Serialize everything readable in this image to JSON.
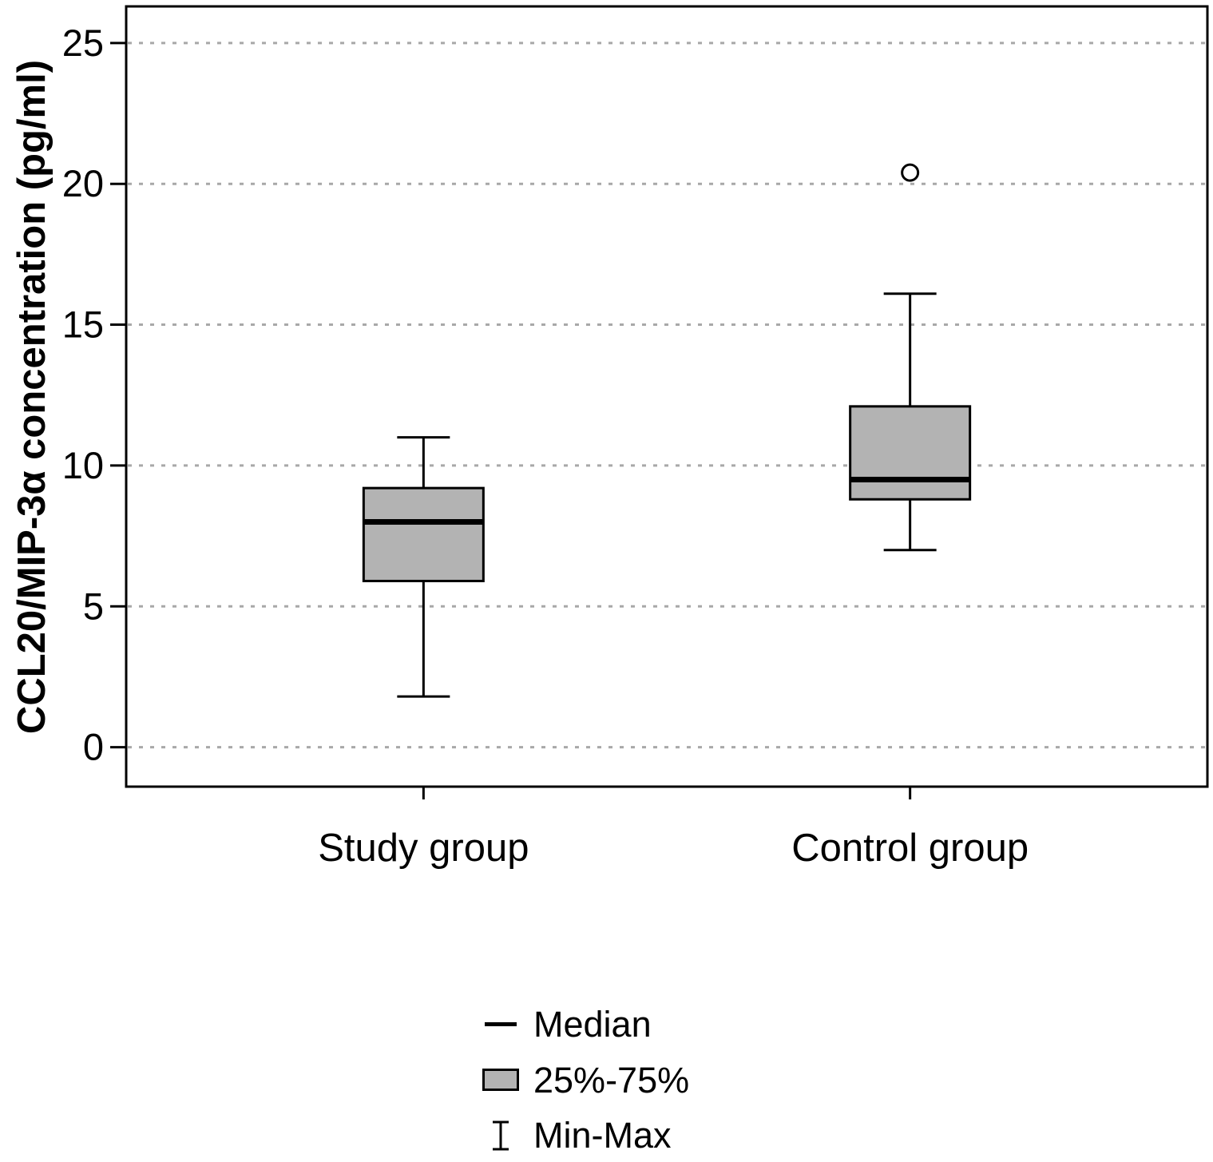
{
  "chart_data": {
    "type": "box",
    "title": "",
    "xlabel": "",
    "ylabel": "CCL20/MIP-3α concentration (pg/ml)",
    "categories": [
      "Study group",
      "Control group"
    ],
    "yticks": [
      0,
      5,
      10,
      15,
      20,
      25
    ],
    "ylim": [
      -1.4,
      26.3
    ],
    "grid": "dashed-horizontal",
    "grid_color": "#a8a8a8",
    "box_fill": "#b3b3b3",
    "box_stroke": "#000000",
    "boxes": [
      {
        "category": "Study group",
        "min": 1.8,
        "q1": 5.9,
        "median": 8.0,
        "q3": 9.2,
        "max": 11.0,
        "outliers": []
      },
      {
        "category": "Control group",
        "min": 7.0,
        "q1": 8.8,
        "median": 9.5,
        "q3": 12.1,
        "max": 16.1,
        "outliers": [
          20.4
        ]
      }
    ],
    "legend": [
      {
        "symbol": "median-line",
        "label": "Median"
      },
      {
        "symbol": "box",
        "label": "25%-75%"
      },
      {
        "symbol": "whisker",
        "label": "Min-Max"
      }
    ]
  }
}
